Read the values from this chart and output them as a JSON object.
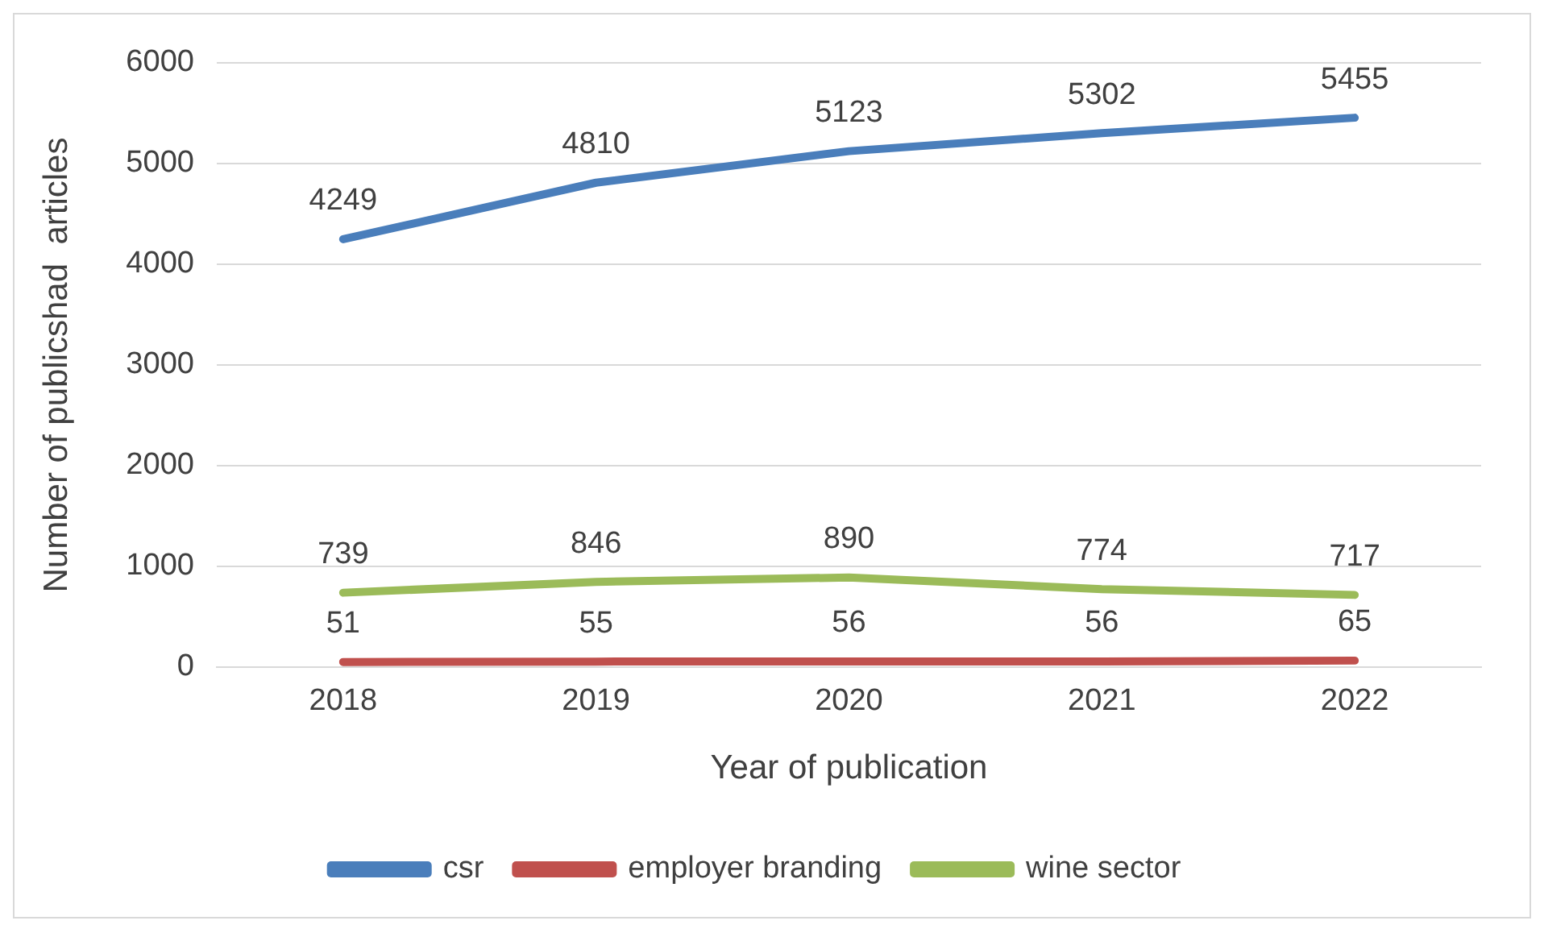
{
  "chart_data": {
    "type": "line",
    "xlabel": "Year of publication",
    "ylabel": "Number of publicshad  articles",
    "categories": [
      "2018",
      "2019",
      "2020",
      "2021",
      "2022"
    ],
    "series": [
      {
        "name": "csr",
        "color": "#4a7ebb",
        "values": [
          4249,
          4810,
          5123,
          5302,
          5455
        ]
      },
      {
        "name": "employer branding",
        "color": "#c0504d",
        "values": [
          51,
          55,
          56,
          56,
          65
        ]
      },
      {
        "name": "wine sector",
        "color": "#9bbb59",
        "values": [
          739,
          846,
          890,
          774,
          717
        ]
      }
    ],
    "ylim": [
      0,
      6000
    ],
    "yticks": [
      0,
      1000,
      2000,
      3000,
      4000,
      5000,
      6000
    ],
    "grid": "y",
    "legend": "bottom",
    "data_labels": true,
    "marker": "none",
    "line_style": "solid"
  }
}
